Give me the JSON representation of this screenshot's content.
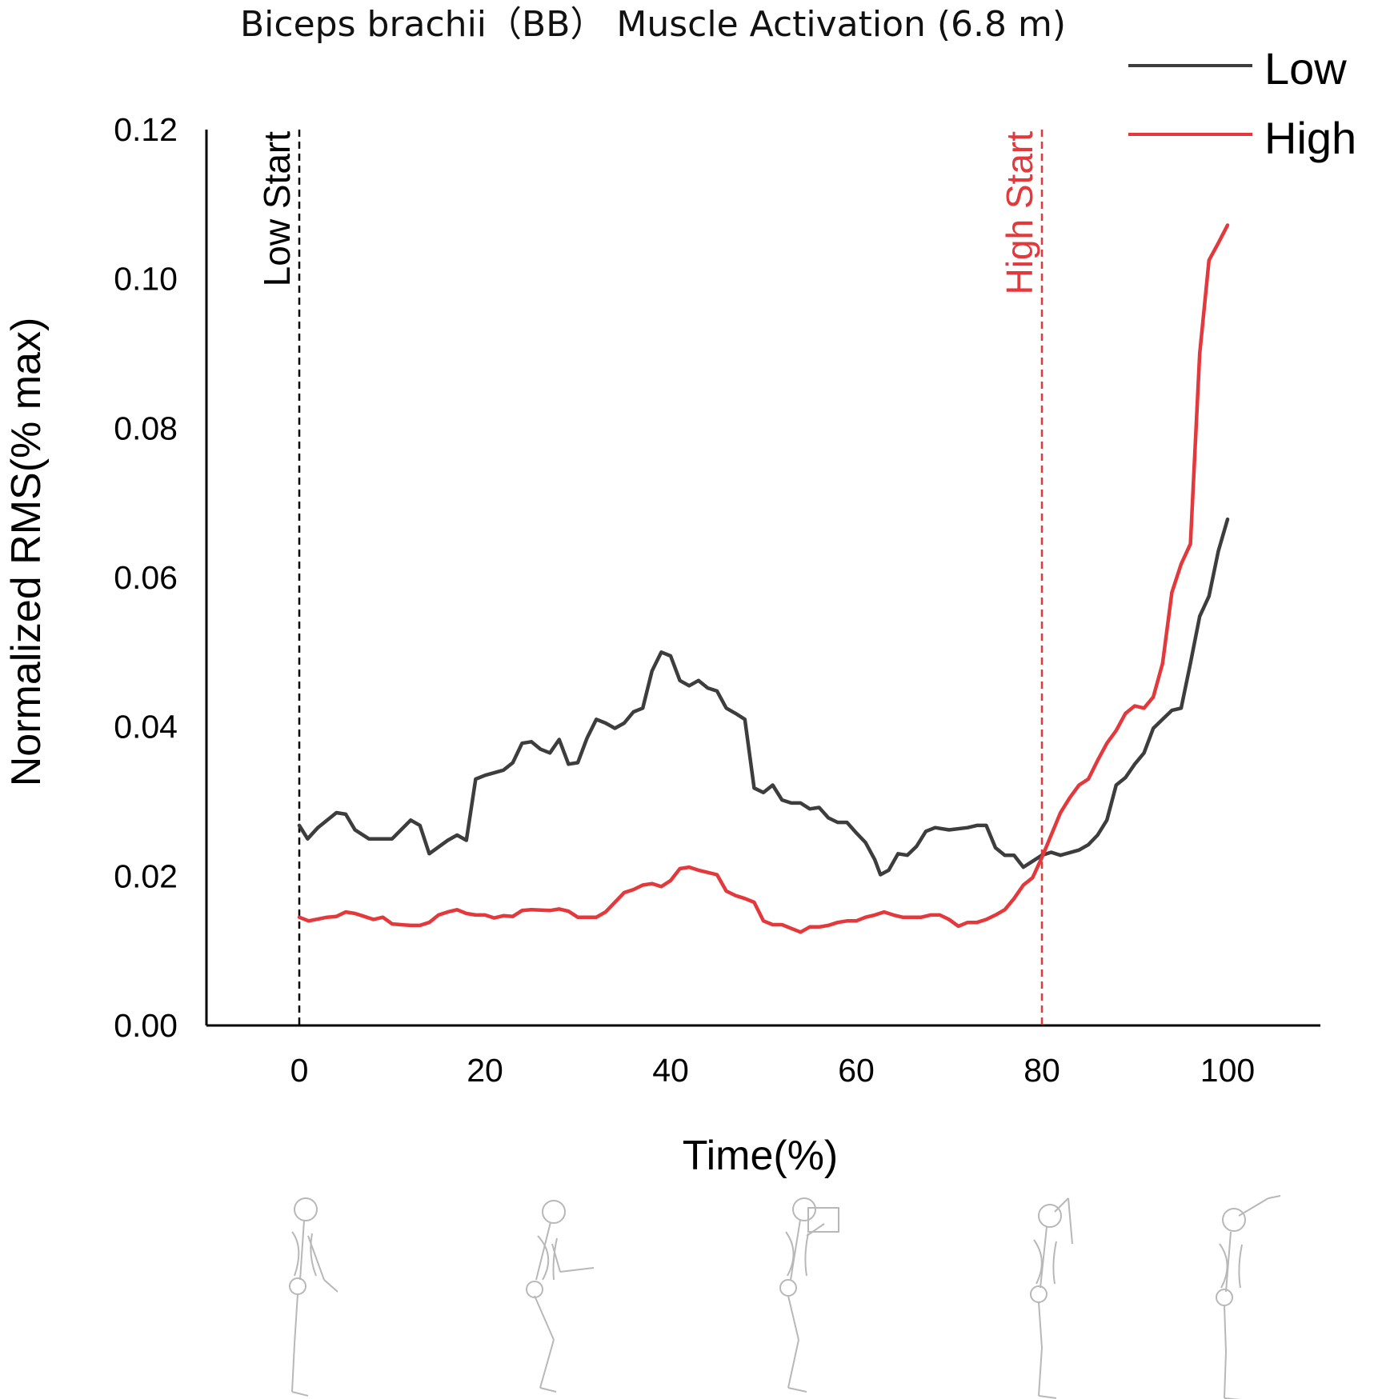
{
  "chart_data": {
    "type": "line",
    "title": "Biceps brachii（BB） Muscle Activation (6.8 m)",
    "xlabel": "Time(%)",
    "ylabel": "Normalized RMS(% max)",
    "xlim": [
      -10,
      110
    ],
    "ylim": [
      0,
      0.12
    ],
    "x_ticks": [
      "0",
      "20",
      "40",
      "60",
      "80",
      "100"
    ],
    "y_ticks": [
      "0.00",
      "0.02",
      "0.04",
      "0.06",
      "0.08",
      "0.10",
      "0.12"
    ],
    "grid": false,
    "legend_position": "top-right",
    "series": [
      {
        "name": "Low",
        "color": "#3d3d3d",
        "points": [
          [
            0,
            0.0268
          ],
          [
            0.9,
            0.025
          ],
          [
            2,
            0.0265
          ],
          [
            4,
            0.0285
          ],
          [
            5,
            0.0283
          ],
          [
            6,
            0.0262
          ],
          [
            7.5,
            0.025
          ],
          [
            10,
            0.025
          ],
          [
            12,
            0.0275
          ],
          [
            13,
            0.0268
          ],
          [
            14,
            0.023
          ],
          [
            16,
            0.0248
          ],
          [
            17,
            0.0255
          ],
          [
            18,
            0.0248
          ],
          [
            19,
            0.033
          ],
          [
            20,
            0.0335
          ],
          [
            22,
            0.0342
          ],
          [
            23,
            0.0352
          ],
          [
            24,
            0.0378
          ],
          [
            25,
            0.038
          ],
          [
            26,
            0.037
          ],
          [
            27,
            0.0365
          ],
          [
            28,
            0.0383
          ],
          [
            29,
            0.035
          ],
          [
            30,
            0.0352
          ],
          [
            31,
            0.0385
          ],
          [
            32,
            0.041
          ],
          [
            33,
            0.0405
          ],
          [
            34,
            0.0398
          ],
          [
            35,
            0.0405
          ],
          [
            36,
            0.042
          ],
          [
            37,
            0.0425
          ],
          [
            38,
            0.0475
          ],
          [
            39,
            0.05
          ],
          [
            40,
            0.0495
          ],
          [
            41,
            0.0462
          ],
          [
            42,
            0.0455
          ],
          [
            43,
            0.0462
          ],
          [
            44,
            0.0452
          ],
          [
            45,
            0.0448
          ],
          [
            46,
            0.0425
          ],
          [
            47,
            0.0418
          ],
          [
            48,
            0.041
          ],
          [
            49,
            0.0318
          ],
          [
            50,
            0.0312
          ],
          [
            51,
            0.0322
          ],
          [
            52,
            0.0302
          ],
          [
            53,
            0.0298
          ],
          [
            54,
            0.0298
          ],
          [
            55,
            0.029
          ],
          [
            56,
            0.0292
          ],
          [
            57,
            0.0278
          ],
          [
            58,
            0.0272
          ],
          [
            59,
            0.0272
          ],
          [
            60,
            0.0258
          ],
          [
            61,
            0.0245
          ],
          [
            62,
            0.0222
          ],
          [
            62.6,
            0.0202
          ],
          [
            63.5,
            0.0208
          ],
          [
            64.5,
            0.023
          ],
          [
            65.5,
            0.0228
          ],
          [
            66.5,
            0.024
          ],
          [
            67.5,
            0.026
          ],
          [
            68.5,
            0.0265
          ],
          [
            70,
            0.0262
          ],
          [
            72,
            0.0265
          ],
          [
            73,
            0.0268
          ],
          [
            74,
            0.0268
          ],
          [
            75,
            0.0238
          ],
          [
            76,
            0.0228
          ],
          [
            77,
            0.0228
          ],
          [
            78,
            0.0212
          ],
          [
            79,
            0.022
          ],
          [
            80,
            0.0228
          ],
          [
            81,
            0.0232
          ],
          [
            82,
            0.0228
          ],
          [
            84,
            0.0235
          ],
          [
            85,
            0.0242
          ],
          [
            86,
            0.0255
          ],
          [
            87,
            0.0275
          ],
          [
            88,
            0.0322
          ],
          [
            89,
            0.0332
          ],
          [
            90,
            0.035
          ],
          [
            91,
            0.0365
          ],
          [
            92,
            0.0398
          ],
          [
            93,
            0.041
          ],
          [
            94,
            0.0422
          ],
          [
            95,
            0.0425
          ],
          [
            96,
            0.0485
          ],
          [
            97,
            0.0548
          ],
          [
            98,
            0.0575
          ],
          [
            99,
            0.0635
          ],
          [
            100,
            0.0678
          ]
        ]
      },
      {
        "name": "High",
        "color": "#e3383c",
        "points": [
          [
            0,
            0.0145
          ],
          [
            1,
            0.014
          ],
          [
            3,
            0.0145
          ],
          [
            4,
            0.0146
          ],
          [
            5,
            0.0152
          ],
          [
            6,
            0.015
          ],
          [
            7,
            0.0146
          ],
          [
            8,
            0.0142
          ],
          [
            9,
            0.0145
          ],
          [
            10,
            0.0136
          ],
          [
            12,
            0.0134
          ],
          [
            13,
            0.0134
          ],
          [
            14,
            0.0138
          ],
          [
            15,
            0.0148
          ],
          [
            16,
            0.0152
          ],
          [
            17,
            0.0155
          ],
          [
            18,
            0.015
          ],
          [
            19,
            0.0148
          ],
          [
            20,
            0.0148
          ],
          [
            21,
            0.0144
          ],
          [
            22,
            0.0147
          ],
          [
            23,
            0.0146
          ],
          [
            24,
            0.0154
          ],
          [
            25,
            0.0155
          ],
          [
            27,
            0.0154
          ],
          [
            28,
            0.0156
          ],
          [
            29,
            0.0153
          ],
          [
            30,
            0.0145
          ],
          [
            32,
            0.0145
          ],
          [
            33,
            0.0152
          ],
          [
            35,
            0.0178
          ],
          [
            36,
            0.0182
          ],
          [
            37,
            0.0188
          ],
          [
            38,
            0.019
          ],
          [
            39,
            0.0186
          ],
          [
            40,
            0.0194
          ],
          [
            41,
            0.021
          ],
          [
            42,
            0.0212
          ],
          [
            43,
            0.0208
          ],
          [
            44,
            0.0205
          ],
          [
            45,
            0.0202
          ],
          [
            46,
            0.018
          ],
          [
            47,
            0.0174
          ],
          [
            48,
            0.017
          ],
          [
            49,
            0.0165
          ],
          [
            50,
            0.014
          ],
          [
            51,
            0.0135
          ],
          [
            52,
            0.0135
          ],
          [
            53,
            0.013
          ],
          [
            54,
            0.0125
          ],
          [
            55,
            0.0132
          ],
          [
            56,
            0.0132
          ],
          [
            57,
            0.0134
          ],
          [
            58,
            0.0138
          ],
          [
            59,
            0.014
          ],
          [
            60,
            0.014
          ],
          [
            61,
            0.0145
          ],
          [
            62,
            0.0148
          ],
          [
            63,
            0.0152
          ],
          [
            64,
            0.0148
          ],
          [
            65,
            0.0145
          ],
          [
            66,
            0.0145
          ],
          [
            67,
            0.0145
          ],
          [
            68,
            0.0148
          ],
          [
            69,
            0.0148
          ],
          [
            70,
            0.0142
          ],
          [
            71,
            0.0133
          ],
          [
            72,
            0.0138
          ],
          [
            73,
            0.0138
          ],
          [
            74,
            0.0142
          ],
          [
            75,
            0.0148
          ],
          [
            76,
            0.0155
          ],
          [
            77,
            0.017
          ],
          [
            78,
            0.0188
          ],
          [
            79,
            0.0198
          ],
          [
            80,
            0.0225
          ],
          [
            81,
            0.0255
          ],
          [
            82,
            0.0285
          ],
          [
            83,
            0.0305
          ],
          [
            84,
            0.0322
          ],
          [
            85,
            0.033
          ],
          [
            86,
            0.0355
          ],
          [
            87,
            0.0378
          ],
          [
            88,
            0.0395
          ],
          [
            89,
            0.0418
          ],
          [
            90,
            0.0428
          ],
          [
            91,
            0.0425
          ],
          [
            92,
            0.044
          ],
          [
            93,
            0.0485
          ],
          [
            94,
            0.058
          ],
          [
            95,
            0.0618
          ],
          [
            96,
            0.0645
          ],
          [
            97,
            0.09
          ],
          [
            98,
            0.1025
          ],
          [
            99,
            0.1048
          ],
          [
            100,
            0.1072
          ]
        ]
      }
    ],
    "annotations": [
      {
        "label": "Low Start",
        "x": 0,
        "color": "#000000"
      },
      {
        "label": "High Start",
        "x": 80,
        "color": "#e3383c"
      }
    ]
  }
}
